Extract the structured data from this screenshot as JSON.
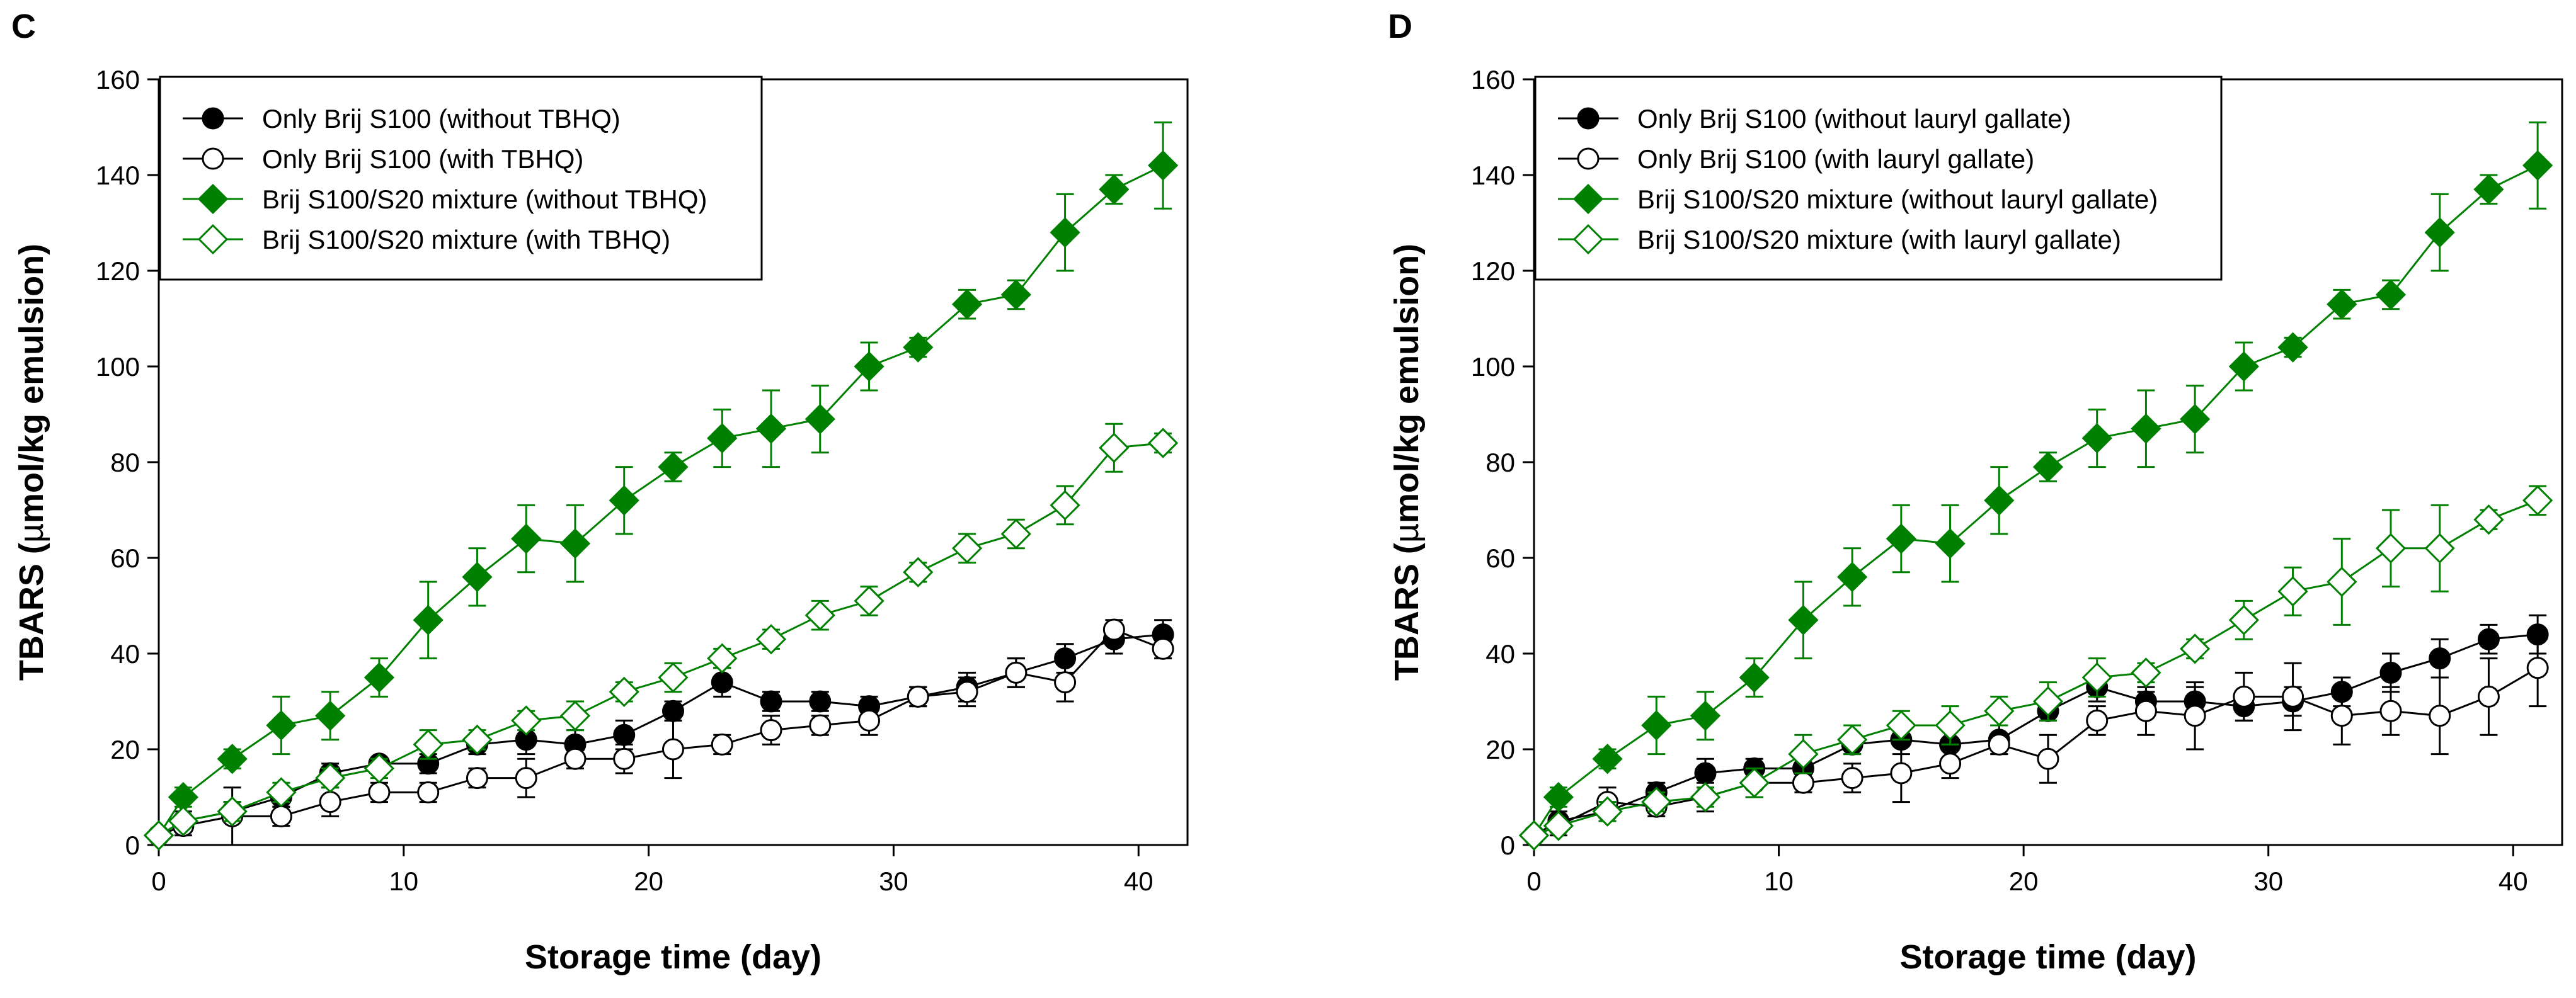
{
  "chart_data": [
    {
      "panel_label": "C",
      "type": "line",
      "title": "",
      "xlabel": "Storage time (day)",
      "ylabel_prefix": "TBARS (",
      "ylabel_mu": "µ",
      "ylabel_suffix": "mol/kg emulsion)",
      "xlim": [
        0,
        42
      ],
      "ylim": [
        0,
        160
      ],
      "xticks": [
        "0",
        "10",
        "20",
        "30",
        "40"
      ],
      "yticks": [
        "0",
        "20",
        "40",
        "60",
        "80",
        "100",
        "120",
        "140",
        "160"
      ],
      "grid": false,
      "legend_position": "top-left",
      "series": [
        {
          "name": "Only Brij S100 (without TBHQ)",
          "color": "#000000",
          "marker": "circle",
          "filled": true,
          "x": [
            0,
            1,
            3,
            5,
            7,
            9,
            11,
            13,
            15,
            17,
            19,
            21,
            23,
            25,
            27,
            29,
            31,
            33,
            35,
            37,
            39,
            41
          ],
          "y": [
            2,
            5,
            7,
            10,
            15,
            17,
            17,
            21,
            22,
            21,
            23,
            28,
            34,
            30,
            30,
            29,
            31,
            33,
            36,
            39,
            43,
            44
          ],
          "err": [
            1,
            2,
            2,
            2,
            2,
            1,
            2,
            2,
            3,
            3,
            3,
            2,
            3,
            2,
            2,
            2,
            2,
            3,
            3,
            3,
            3,
            3
          ]
        },
        {
          "name": "Only Brij S100 (with TBHQ)",
          "color": "#000000",
          "marker": "circle",
          "filled": false,
          "x": [
            0,
            1,
            3,
            5,
            7,
            9,
            11,
            13,
            15,
            17,
            19,
            21,
            23,
            25,
            27,
            29,
            31,
            33,
            35,
            37,
            39,
            41
          ],
          "y": [
            2,
            4,
            6,
            6,
            9,
            11,
            11,
            14,
            14,
            18,
            18,
            20,
            21,
            24,
            25,
            26,
            31,
            32,
            36,
            34,
            45,
            41
          ],
          "err": [
            1,
            2,
            6,
            2,
            3,
            2,
            2,
            2,
            4,
            2,
            3,
            6,
            2,
            3,
            2,
            3,
            2,
            3,
            3,
            4,
            2,
            2
          ]
        },
        {
          "name": "Brij S100/S20 mixture (without TBHQ)",
          "color": "#008000",
          "marker": "diamond",
          "filled": true,
          "x": [
            0,
            1,
            3,
            5,
            7,
            9,
            11,
            13,
            15,
            17,
            19,
            21,
            23,
            25,
            27,
            29,
            31,
            33,
            35,
            37,
            39,
            41
          ],
          "y": [
            2,
            10,
            18,
            25,
            27,
            35,
            47,
            56,
            64,
            63,
            72,
            79,
            85,
            87,
            89,
            100,
            104,
            113,
            115,
            128,
            137,
            142
          ],
          "err": [
            1,
            2,
            2,
            6,
            5,
            4,
            8,
            6,
            7,
            8,
            7,
            3,
            6,
            8,
            7,
            5,
            2,
            3,
            3,
            8,
            3,
            9
          ]
        },
        {
          "name": "Brij S100/S20 mixture (with TBHQ)",
          "color": "#008000",
          "marker": "diamond",
          "filled": false,
          "x": [
            0,
            1,
            3,
            5,
            7,
            9,
            11,
            13,
            15,
            17,
            19,
            21,
            23,
            25,
            27,
            29,
            31,
            33,
            35,
            37,
            39,
            41
          ],
          "y": [
            2,
            5,
            7,
            11,
            14,
            16,
            21,
            22,
            26,
            27,
            32,
            35,
            39,
            43,
            48,
            51,
            57,
            62,
            65,
            71,
            83,
            84
          ],
          "err": [
            1,
            1,
            2,
            2,
            2,
            2,
            3,
            2,
            2,
            3,
            2,
            3,
            2,
            2,
            3,
            3,
            2,
            3,
            3,
            4,
            5,
            2
          ]
        }
      ]
    },
    {
      "panel_label": "D",
      "type": "line",
      "title": "",
      "xlabel": "Storage time (day)",
      "ylabel_prefix": "TBARS (",
      "ylabel_mu": "µ",
      "ylabel_suffix": "mol/kg emulsion)",
      "xlim": [
        0,
        42
      ],
      "ylim": [
        0,
        160
      ],
      "xticks": [
        "0",
        "10",
        "20",
        "30",
        "40"
      ],
      "yticks": [
        "0",
        "20",
        "40",
        "60",
        "80",
        "100",
        "120",
        "140",
        "160"
      ],
      "grid": false,
      "legend_position": "top-left",
      "series": [
        {
          "name": "Only Brij S100 (without lauryl gallate)",
          "color": "#000000",
          "marker": "circle",
          "filled": true,
          "x": [
            0,
            1,
            3,
            5,
            7,
            9,
            11,
            13,
            15,
            17,
            19,
            21,
            23,
            25,
            27,
            29,
            31,
            33,
            35,
            37,
            39,
            41
          ],
          "y": [
            2,
            5,
            7,
            11,
            15,
            16,
            16,
            21,
            22,
            21,
            22,
            28,
            33,
            30,
            30,
            29,
            30,
            32,
            36,
            39,
            43,
            44
          ],
          "err": [
            1,
            2,
            2,
            2,
            3,
            2,
            2,
            2,
            3,
            3,
            3,
            2,
            3,
            2,
            3,
            3,
            3,
            3,
            4,
            4,
            3,
            4
          ]
        },
        {
          "name": "Only Brij S100 (with lauryl gallate)",
          "color": "#000000",
          "marker": "circle",
          "filled": false,
          "x": [
            0,
            1,
            3,
            5,
            7,
            9,
            11,
            13,
            15,
            17,
            19,
            21,
            23,
            25,
            27,
            29,
            31,
            33,
            35,
            37,
            39,
            41
          ],
          "y": [
            2,
            4,
            9,
            8,
            10,
            13,
            13,
            14,
            15,
            17,
            21,
            18,
            26,
            28,
            27,
            31,
            31,
            27,
            28,
            27,
            31,
            37
          ],
          "err": [
            1,
            2,
            3,
            2,
            3,
            3,
            2,
            3,
            6,
            3,
            2,
            5,
            3,
            5,
            7,
            5,
            7,
            6,
            5,
            8,
            8,
            8
          ]
        },
        {
          "name": "Brij S100/S20 mixture (without lauryl gallate)",
          "color": "#008000",
          "marker": "diamond",
          "filled": true,
          "x": [
            0,
            1,
            3,
            5,
            7,
            9,
            11,
            13,
            15,
            17,
            19,
            21,
            23,
            25,
            27,
            29,
            31,
            33,
            35,
            37,
            39,
            41
          ],
          "y": [
            2,
            10,
            18,
            25,
            27,
            35,
            47,
            56,
            64,
            63,
            72,
            79,
            85,
            87,
            89,
            100,
            104,
            113,
            115,
            128,
            137,
            142
          ],
          "err": [
            1,
            2,
            2,
            6,
            5,
            4,
            8,
            6,
            7,
            8,
            7,
            3,
            6,
            8,
            7,
            5,
            2,
            3,
            3,
            8,
            3,
            9
          ]
        },
        {
          "name": "Brij S100/S20 mixture (with lauryl gallate)",
          "color": "#008000",
          "marker": "diamond",
          "filled": false,
          "x": [
            0,
            1,
            3,
            5,
            7,
            9,
            11,
            13,
            15,
            17,
            19,
            21,
            23,
            25,
            27,
            29,
            31,
            33,
            35,
            37,
            39,
            41
          ],
          "y": [
            2,
            4,
            7,
            9,
            10,
            13,
            19,
            22,
            25,
            25,
            28,
            30,
            35,
            36,
            41,
            47,
            53,
            55,
            62,
            62,
            68,
            72
          ],
          "err": [
            1,
            1,
            2,
            2,
            2,
            3,
            4,
            3,
            3,
            4,
            3,
            4,
            4,
            2,
            2,
            4,
            5,
            9,
            8,
            9,
            2,
            3
          ]
        }
      ]
    }
  ]
}
